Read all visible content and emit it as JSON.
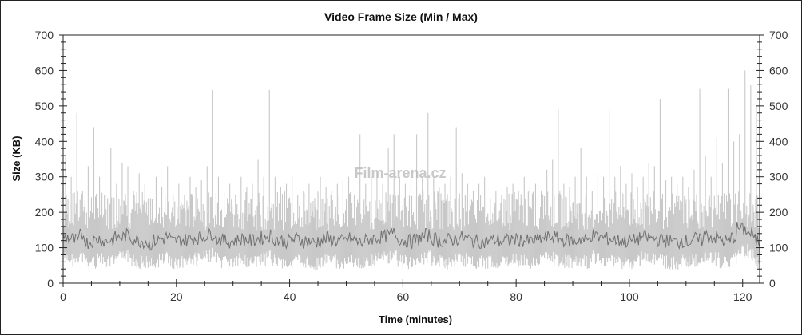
{
  "chart_data": {
    "type": "area",
    "title": "Video Frame Size (Min / Max)",
    "xlabel": "Time (minutes)",
    "ylabel": "Size (KB)",
    "xlim": [
      0,
      123
    ],
    "ylim": [
      0,
      700
    ],
    "xticks": [
      "0",
      "20",
      "40",
      "60",
      "80",
      "100",
      "120"
    ],
    "yticks": [
      "0",
      "100",
      "200",
      "300",
      "400",
      "500",
      "600",
      "700"
    ],
    "grid": false,
    "legend": "none",
    "watermark": "Film-arena.cz",
    "x_step_minutes": 1,
    "series": [
      {
        "name": "Max",
        "color": "#c8c8c8",
        "values": [
          360,
          300,
          480,
          260,
          330,
          440,
          300,
          250,
          380,
          280,
          340,
          330,
          260,
          310,
          280,
          240,
          300,
          270,
          330,
          250,
          280,
          250,
          300,
          270,
          290,
          330,
          545,
          300,
          260,
          280,
          250,
          300,
          270,
          280,
          350,
          300,
          545,
          300,
          270,
          280,
          300,
          250,
          260,
          280,
          240,
          300,
          270,
          260,
          280,
          290,
          300,
          250,
          420,
          280,
          300,
          310,
          280,
          380,
          420,
          300,
          280,
          300,
          420,
          300,
          480,
          300,
          270,
          280,
          300,
          440,
          310,
          280,
          260,
          280,
          300,
          240,
          260,
          250,
          270,
          280,
          260,
          300,
          270,
          280,
          260,
          320,
          350,
          490,
          280,
          270,
          300,
          380,
          300,
          260,
          310,
          300,
          490,
          300,
          330,
          280,
          310,
          270,
          300,
          340,
          330,
          520,
          290,
          300,
          280,
          300,
          270,
          320,
          550,
          360,
          300,
          410,
          340,
          550,
          400,
          420,
          600,
          560,
          500,
          480
        ]
      },
      {
        "name": "Min",
        "color": "#707070",
        "values": [
          130,
          125,
          120,
          135,
          115,
          120,
          125,
          118,
          122,
          128,
          130,
          135,
          125,
          120,
          118,
          110,
          120,
          125,
          130,
          118,
          120,
          122,
          125,
          128,
          130,
          135,
          140,
          125,
          120,
          118,
          120,
          125,
          122,
          120,
          125,
          128,
          135,
          125,
          120,
          118,
          122,
          125,
          120,
          118,
          115,
          120,
          125,
          122,
          120,
          118,
          125,
          120,
          115,
          120,
          125,
          128,
          130,
          135,
          140,
          125,
          120,
          118,
          122,
          130,
          135,
          125,
          120,
          118,
          122,
          125,
          128,
          125,
          120,
          118,
          115,
          120,
          122,
          118,
          120,
          125,
          122,
          120,
          118,
          120,
          125,
          128,
          130,
          125,
          122,
          120,
          118,
          125,
          120,
          135,
          130,
          128,
          125,
          122,
          120,
          118,
          120,
          125,
          130,
          128,
          125,
          122,
          120,
          118,
          115,
          120,
          118,
          125,
          120,
          135,
          130,
          128,
          120,
          118,
          130,
          155,
          150,
          140,
          120,
          110
        ]
      }
    ]
  }
}
